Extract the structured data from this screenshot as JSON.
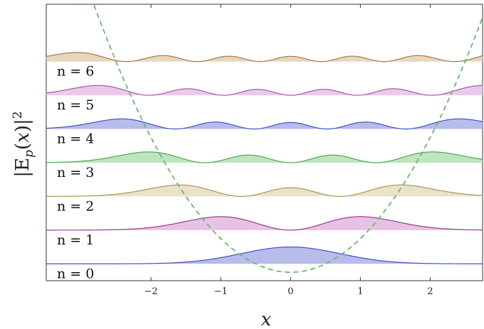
{
  "chart_data": {
    "type": "area",
    "title": "",
    "xlabel": "x",
    "ylabel": "|E_p(x)|²",
    "xlim": [
      -3.5,
      2.75
    ],
    "ylim": [
      -0.5,
      7.7
    ],
    "x_ticks": [
      -2,
      -1,
      0,
      1,
      2
    ],
    "x_tick_labels": [
      "−2",
      "−1",
      "0",
      "1",
      "2"
    ],
    "grid": false,
    "potential": {
      "form": "y = x^2",
      "style": "dashed",
      "color": "#66bb66"
    },
    "series": [
      {
        "name": "n = 0",
        "n": 0,
        "baseline": 0,
        "peak": 0.5,
        "color": "#3f52c8",
        "fill": "#aab0e8"
      },
      {
        "name": "n = 1",
        "n": 1,
        "baseline": 1,
        "peak": 0.4,
        "color": "#9a3a92",
        "fill": "#e2b8df"
      },
      {
        "name": "n = 2",
        "n": 2,
        "baseline": 2,
        "peak": 0.34,
        "color": "#a7955a",
        "fill": "#e6ddbe"
      },
      {
        "name": "n = 3",
        "n": 3,
        "baseline": 3,
        "peak": 0.32,
        "color": "#4aa84e",
        "fill": "#b3e0b3"
      },
      {
        "name": "n = 4",
        "n": 4,
        "baseline": 4,
        "peak": 0.3,
        "color": "#3f52c8",
        "fill": "#aab0e8"
      },
      {
        "name": "n = 5",
        "n": 5,
        "baseline": 5,
        "peak": 0.29,
        "color": "#b04fb0",
        "fill": "#e6c1e6"
      },
      {
        "name": "n = 6",
        "n": 6,
        "baseline": 6,
        "peak": 0.27,
        "color": "#a07a4c",
        "fill": "#e4cfb1"
      }
    ],
    "level_labels": [
      "n = 0",
      "n = 1",
      "n = 2",
      "n = 3",
      "n = 4",
      "n = 5",
      "n = 6"
    ]
  }
}
